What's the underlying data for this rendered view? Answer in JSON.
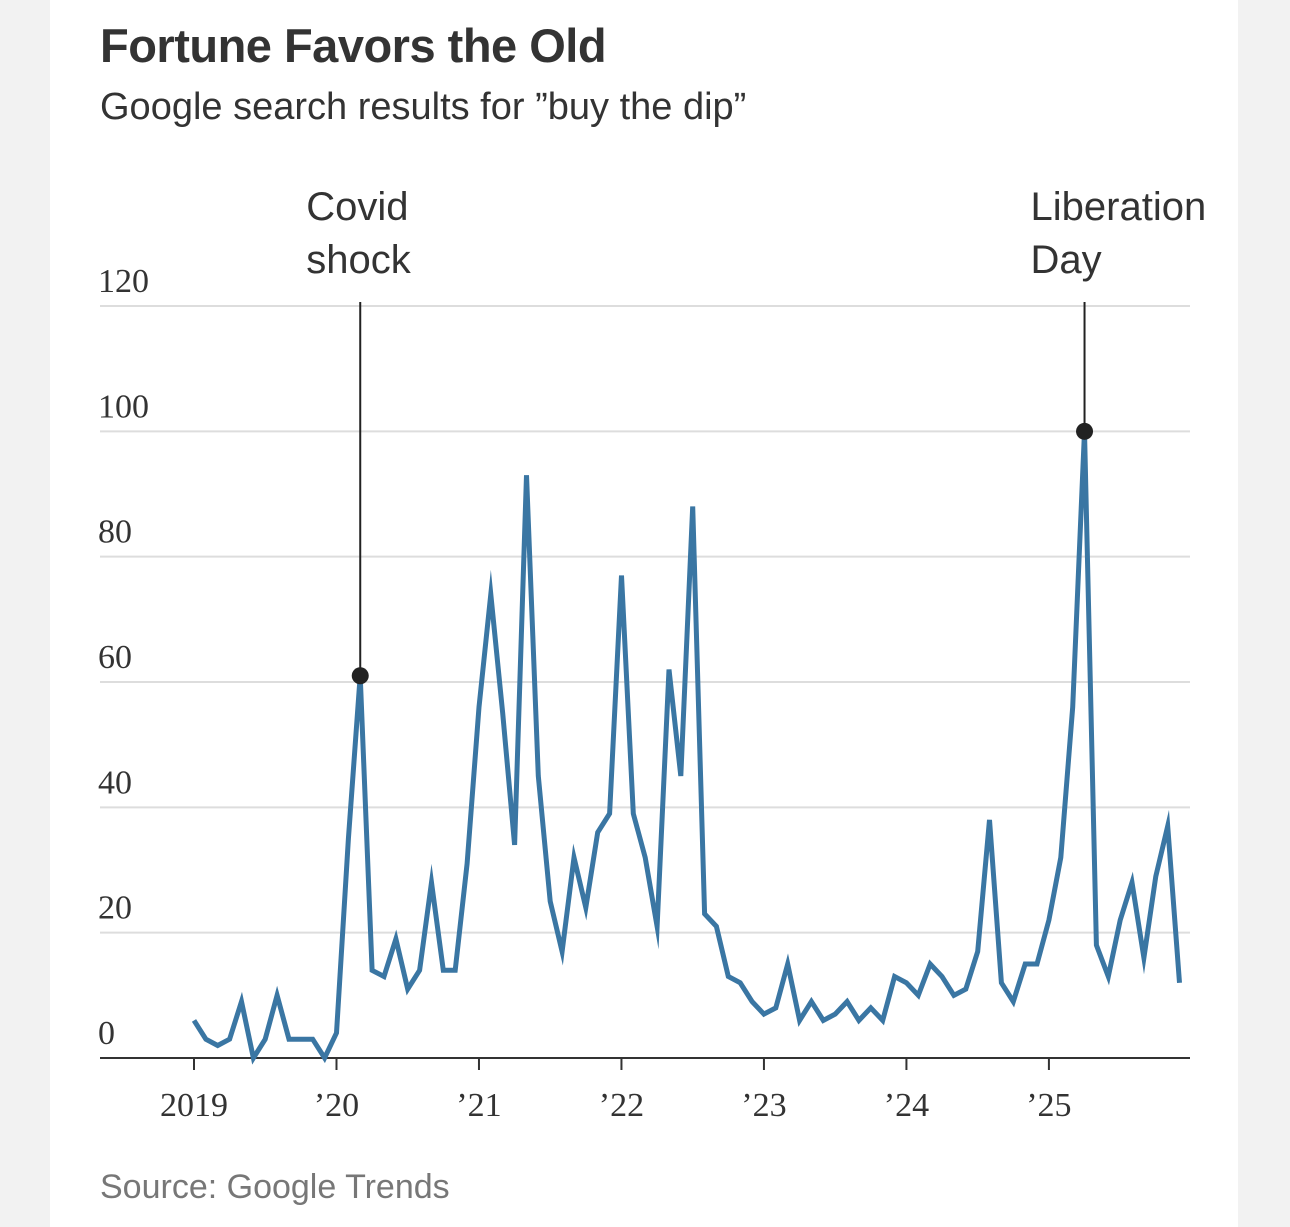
{
  "header": {
    "title": "Fortune Favors the Old",
    "subtitle": "Google search results for ”buy the dip”"
  },
  "footer": {
    "source": "Source: Google Trends"
  },
  "colors": {
    "line": "#3a76a3",
    "grid": "#dddddd",
    "axis": "#333333",
    "annotation": "#222222"
  },
  "chart_data": {
    "type": "line",
    "title": "Fortune Favors the Old",
    "subtitle": "Google search results for ”buy the dip”",
    "xlabel": "",
    "ylabel": "",
    "ylim": [
      0,
      120
    ],
    "xlim": [
      2019,
      2025.92
    ],
    "yticks": [
      0,
      20,
      40,
      60,
      80,
      100,
      120
    ],
    "xticks": [
      {
        "value": 2019,
        "label": "2019"
      },
      {
        "value": 2020,
        "label": "’20"
      },
      {
        "value": 2021,
        "label": "’21"
      },
      {
        "value": 2022,
        "label": "’22"
      },
      {
        "value": 2023,
        "label": "’23"
      },
      {
        "value": 2024,
        "label": "’24"
      },
      {
        "value": 2025,
        "label": "’25"
      }
    ],
    "grid": true,
    "series": [
      {
        "name": "buy the dip",
        "start": 2019.0,
        "step_months": 1,
        "values": [
          6,
          3,
          2,
          3,
          9,
          0,
          3,
          10,
          3,
          3,
          3,
          0,
          4,
          35,
          61,
          14,
          13,
          19,
          11,
          14,
          28,
          14,
          14,
          31,
          56,
          74,
          55,
          34,
          93,
          45,
          25,
          17,
          32,
          24,
          36,
          39,
          77,
          39,
          32,
          21,
          62,
          45,
          88,
          23,
          21,
          13,
          12,
          9,
          7,
          8,
          15,
          6,
          9,
          6,
          7,
          9,
          6,
          8,
          6,
          13,
          12,
          10,
          15,
          13,
          10,
          11,
          17,
          38,
          12,
          9,
          15,
          15,
          22,
          32,
          56,
          100,
          18,
          13,
          22,
          28,
          16,
          29,
          37,
          12
        ]
      }
    ],
    "annotations": [
      {
        "label_lines": [
          "Covid",
          "shock"
        ],
        "x": 2020.1667,
        "y": 61
      },
      {
        "label_lines": [
          "Liberation",
          "Day"
        ],
        "x": 2025.25,
        "y": 100
      }
    ]
  }
}
